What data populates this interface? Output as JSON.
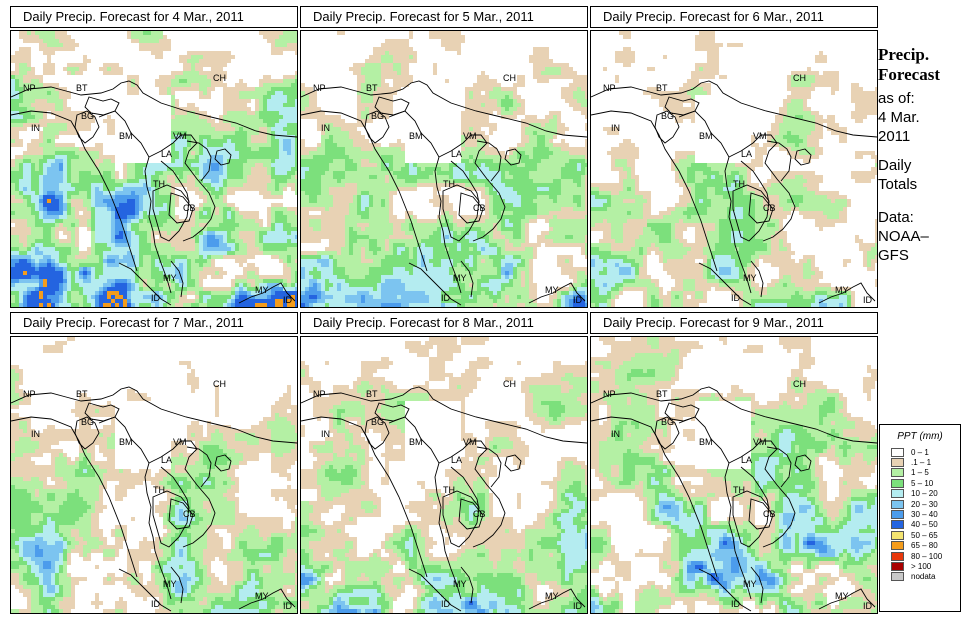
{
  "panels": [
    {
      "title": "Daily Precip. Forecast for  4 Mar., 2011",
      "seed": 11,
      "wet": 1.25
    },
    {
      "title": "Daily Precip. Forecast for  5 Mar., 2011",
      "seed": 23,
      "wet": 0.95
    },
    {
      "title": "Daily Precip. Forecast for  6 Mar., 2011",
      "seed": 37,
      "wet": 0.85
    },
    {
      "title": "Daily Precip. Forecast for  7 Mar., 2011",
      "seed": 41,
      "wet": 0.9
    },
    {
      "title": "Daily Precip. Forecast for  8 Mar., 2011",
      "seed": 53,
      "wet": 0.95
    },
    {
      "title": "Daily Precip. Forecast for  9 Mar., 2011",
      "seed": 67,
      "wet": 1.05
    }
  ],
  "countries": [
    "NP",
    "BT",
    "BG",
    "IN",
    "BM",
    "CH",
    "VM",
    "LA",
    "TH",
    "CB",
    "MY",
    "MY",
    "ID",
    "ID"
  ],
  "side": {
    "title_line1": "Precip.",
    "title_line2": "Forecast",
    "asof": "as of:",
    "date1": "4 Mar.",
    "date2": "2011",
    "totals1": "Daily",
    "totals2": "Totals",
    "data1": "Data:",
    "data2": "NOAA–",
    "data3": "GFS"
  },
  "legend": {
    "title": "PPT (mm)",
    "items": [
      {
        "label": "0 – 1",
        "color": "#ffffff"
      },
      {
        "label": ".1 – 1",
        "color": "#e8d2b4"
      },
      {
        "label": "1 – 5",
        "color": "#b4f0a4"
      },
      {
        "label": "5 – 10",
        "color": "#7ce07c"
      },
      {
        "label": "10 – 20",
        "color": "#b4ecf0"
      },
      {
        "label": "20 – 30",
        "color": "#7cc4f0"
      },
      {
        "label": "30 – 40",
        "color": "#4c9cec"
      },
      {
        "label": "40 – 50",
        "color": "#2464e0"
      },
      {
        "label": "50 – 65",
        "color": "#f4e470"
      },
      {
        "label": "65 – 80",
        "color": "#f49c1c"
      },
      {
        "label": "80 – 100",
        "color": "#e8380c"
      },
      {
        "label": "> 100",
        "color": "#a80000"
      },
      {
        "label": "nodata",
        "color": "#c8c8c8"
      }
    ]
  }
}
